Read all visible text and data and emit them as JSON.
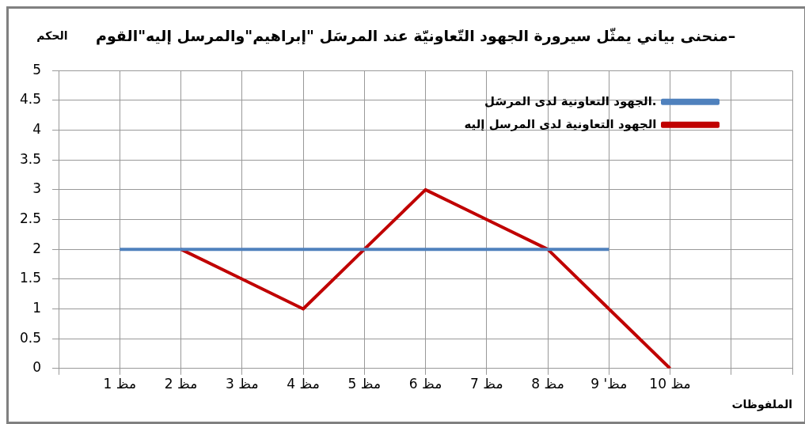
{
  "chart_data": {
    "type": "line",
    "title": "–منحنى بياني يمثّل سيرورة الجهود التّعاونيّة عند المرسَل  \"إبراهيم\"والمرسل إليه\"القوم",
    "ylabel": "الحكم",
    "xlabel": "الملفوظات",
    "categories": [
      null,
      "مظ 1",
      "مظ 2",
      "مظ 3",
      "مظ 4",
      "مظ 5",
      "مظ 6",
      "مظ 7",
      "مظ 8",
      "مظ' 9",
      "مظ 10",
      null,
      null
    ],
    "series": [
      {
        "name": "الجهود التعاونية لدى المرسَل.",
        "color": "#4f81bd",
        "values": [
          null,
          2,
          2,
          2,
          2,
          2,
          2,
          2,
          2,
          2,
          null,
          null,
          null
        ]
      },
      {
        "name": "الجهود التعاونية لدى المرسل إليه",
        "color": "#c00000",
        "values": [
          null,
          null,
          2,
          1.5,
          1,
          2,
          3,
          2.5,
          2,
          1,
          0,
          null,
          null
        ]
      }
    ],
    "ylim": [
      0,
      5
    ],
    "yticks": [
      0,
      0.5,
      1,
      1.5,
      2,
      2.5,
      3,
      3.5,
      4,
      4.5,
      5
    ],
    "grid": true,
    "legend": "top right",
    "marker": "none",
    "line_style": "solid"
  }
}
